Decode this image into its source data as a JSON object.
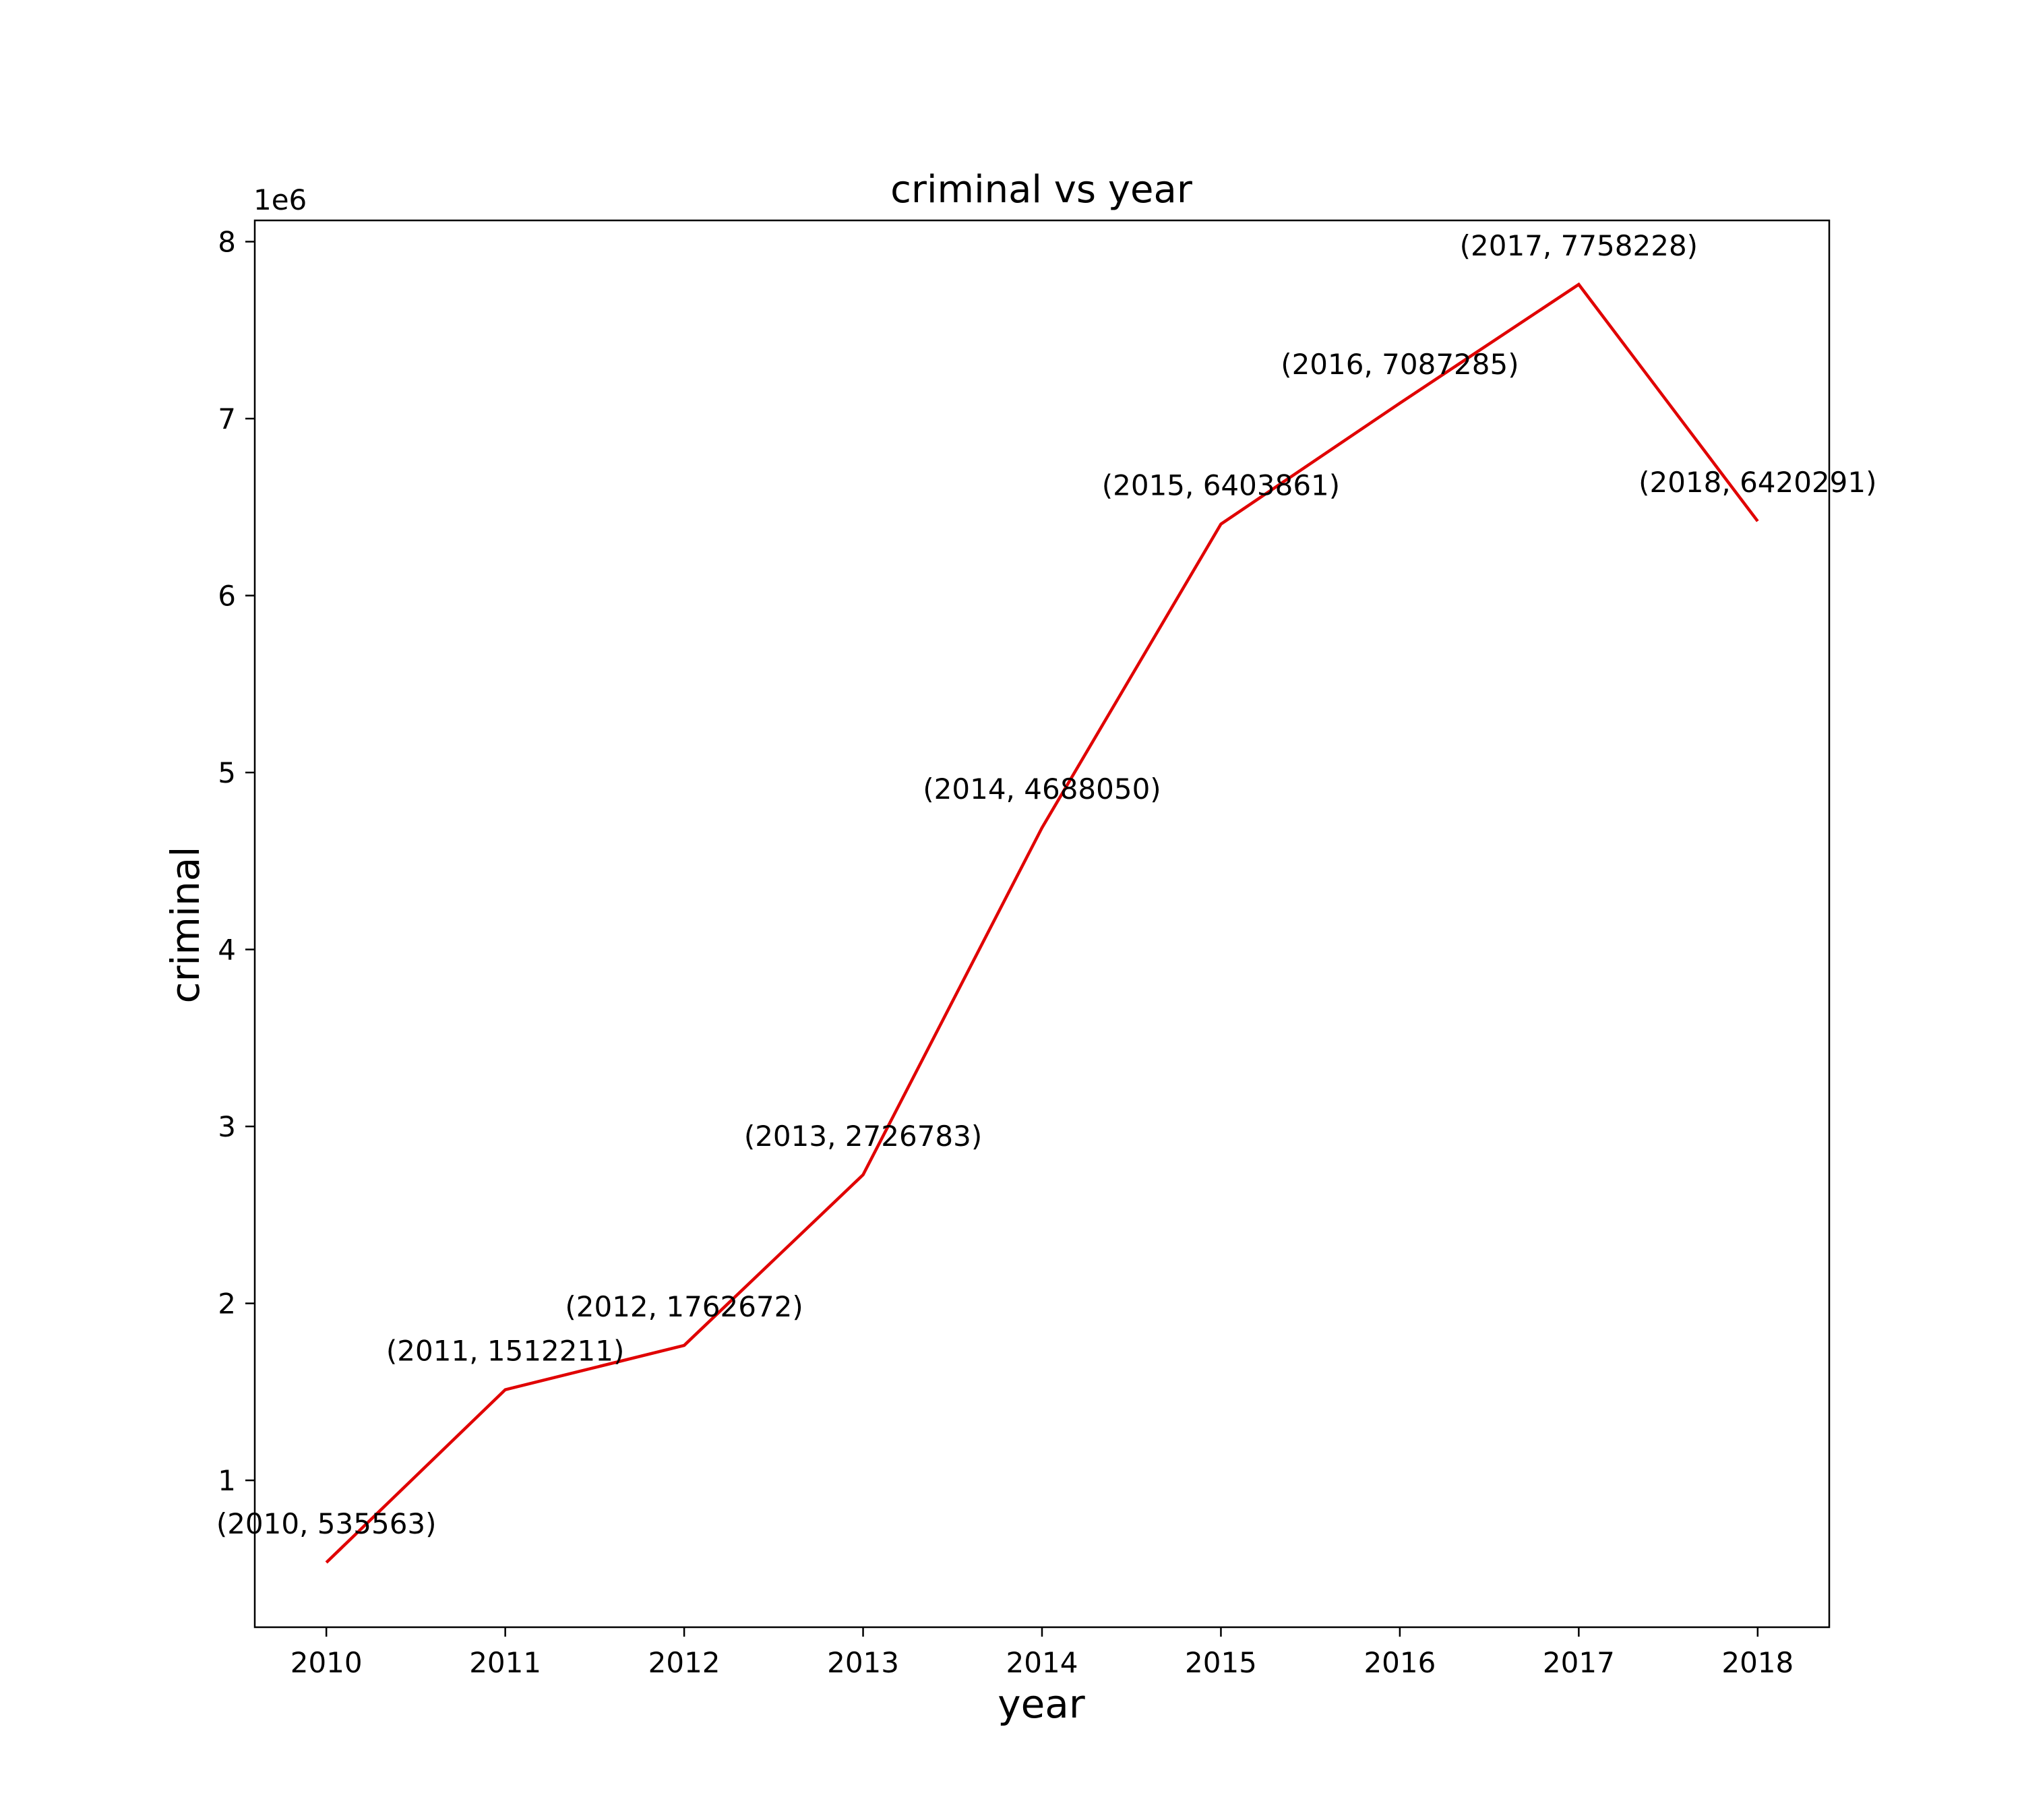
{
  "chart_data": {
    "type": "line",
    "title": "criminal vs year",
    "xlabel": "year",
    "ylabel": "criminal",
    "y_offset_label": "1e6",
    "x": [
      2010,
      2011,
      2012,
      2013,
      2014,
      2015,
      2016,
      2017,
      2018
    ],
    "series": [
      {
        "color": "#e00000",
        "values": [
          535563,
          1512211,
          1762672,
          2726783,
          4688050,
          6403861,
          7087285,
          7758228,
          6420291
        ]
      }
    ],
    "point_labels": [
      "(2010, 535563)",
      "(2011, 1512211)",
      "(2012, 1762672)",
      "(2013, 2726783)",
      "(2014, 4688050)",
      "(2015, 6403861)",
      "(2016, 7087285)",
      "(2017, 7758228)",
      "(2018, 6420291)"
    ],
    "xticks": [
      "2010",
      "2011",
      "2012",
      "2013",
      "2014",
      "2015",
      "2016",
      "2017",
      "2018"
    ],
    "yticks": [
      1,
      2,
      3,
      4,
      5,
      6,
      7,
      8
    ],
    "xlim": [
      2009.6,
      2018.4
    ],
    "ylim": [
      0.17,
      8.12
    ],
    "grid": false,
    "legend": false
  }
}
